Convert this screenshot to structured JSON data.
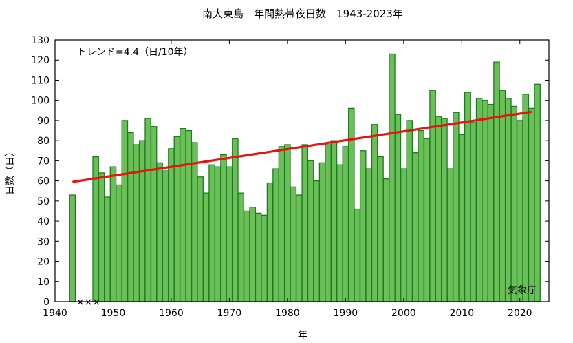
{
  "chart_data": {
    "type": "bar",
    "title": "南大東島　年間熱帯夜日数　1943-2023年",
    "xlabel": "年",
    "ylabel": "日数（日）",
    "xlim": [
      1940,
      2025
    ],
    "ylim": [
      0,
      130
    ],
    "x_ticks": [
      1940,
      1950,
      1960,
      1970,
      1980,
      1990,
      2000,
      2010,
      2020
    ],
    "y_ticks": [
      0,
      10,
      20,
      30,
      40,
      50,
      60,
      70,
      80,
      90,
      100,
      110,
      120,
      130
    ],
    "grid": false,
    "series": [
      {
        "x": [
          1943,
          1947,
          1948,
          1949,
          1950,
          1951,
          1952,
          1953,
          1954,
          1955,
          1956,
          1957,
          1958,
          1959,
          1960,
          1961,
          1962,
          1963,
          1964,
          1965,
          1966,
          1967,
          1968,
          1969,
          1970,
          1971,
          1972,
          1973,
          1974,
          1975,
          1976,
          1977,
          1978,
          1979,
          1980,
          1981,
          1982,
          1983,
          1984,
          1985,
          1986,
          1987,
          1988,
          1989,
          1990,
          1991,
          1992,
          1993,
          1994,
          1995,
          1996,
          1997,
          1998,
          1999,
          2000,
          2001,
          2002,
          2003,
          2004,
          2005,
          2006,
          2007,
          2008,
          2009,
          2010,
          2011,
          2012,
          2013,
          2014,
          2015,
          2016,
          2017,
          2018,
          2019,
          2020,
          2021,
          2022,
          2023
        ],
        "values": [
          53,
          72,
          64,
          52,
          67,
          58,
          90,
          84,
          78,
          80,
          91,
          87,
          69,
          65,
          76,
          82,
          86,
          85,
          79,
          62,
          54,
          68,
          67,
          73,
          67,
          81,
          54,
          45,
          47,
          44,
          43,
          59,
          66,
          77,
          78,
          57,
          53,
          78,
          70,
          60,
          69,
          78,
          80,
          68,
          77,
          96,
          46,
          75,
          66,
          88,
          72,
          61,
          123,
          93,
          66,
          90,
          74,
          85,
          81,
          105,
          92,
          91,
          66,
          94,
          83,
          104,
          89,
          101,
          100,
          98,
          119,
          105,
          101,
          97,
          90,
          103,
          96,
          108
        ]
      }
    ],
    "missing_years": [
      1944,
      1945,
      1946
    ],
    "missing_marker": "×××",
    "trend": {
      "label": "トレンド=4.4（日/10年）",
      "x": [
        1943,
        2022
      ],
      "y": [
        59.5,
        94.3
      ],
      "color": "#e8130e"
    },
    "bar_color": "#6bbf59",
    "bar_edge_color": "#1e7a1e",
    "credit": "気象庁"
  }
}
